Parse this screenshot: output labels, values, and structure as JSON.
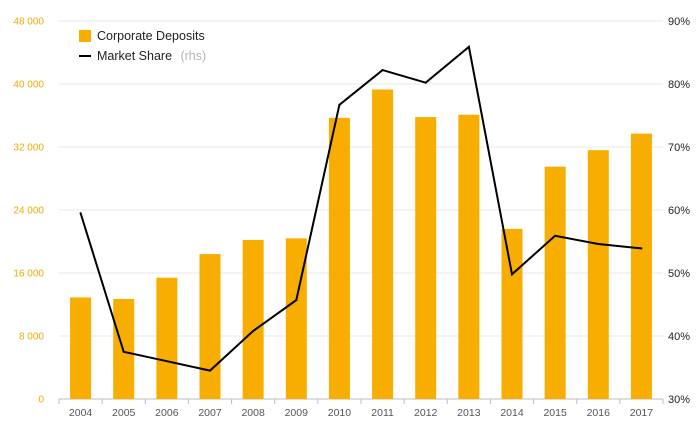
{
  "chart_data": {
    "type": "bar",
    "categories": [
      "2004",
      "2005",
      "2006",
      "2007",
      "2008",
      "2009",
      "2010",
      "2011",
      "2012",
      "2013",
      "2014",
      "2015",
      "2016",
      "2017"
    ],
    "series": [
      {
        "name": "Corporate Deposits",
        "type": "bar",
        "axis": "left",
        "color": "#f7ae00",
        "values": [
          12900,
          12700,
          15400,
          18400,
          20200,
          20400,
          35700,
          39300,
          35800,
          36100,
          21600,
          29500,
          31600,
          33700
        ]
      },
      {
        "name": "Market Share",
        "legend_suffix": "(rhs)",
        "type": "line",
        "axis": "right",
        "color": "#000000",
        "values": [
          59.5,
          37.5,
          36.0,
          34.5,
          40.8,
          45.7,
          76.7,
          82.2,
          80.2,
          85.9,
          49.8,
          55.9,
          54.6,
          53.9
        ]
      }
    ],
    "y_left": {
      "ylim": [
        0,
        48000
      ],
      "ticks": [
        0,
        8000,
        16000,
        24000,
        32000,
        40000,
        48000
      ],
      "tick_labels": [
        "0",
        "8 000",
        "16 000",
        "24 000",
        "32 000",
        "40 000",
        "48 000"
      ],
      "color": "#f2a900"
    },
    "y_right": {
      "ylim": [
        30,
        90
      ],
      "ticks": [
        30,
        40,
        50,
        60,
        70,
        80,
        90
      ],
      "tick_labels": [
        "30%",
        "40%",
        "50%",
        "60%",
        "70%",
        "80%",
        "90%"
      ]
    },
    "title": "",
    "xlabel": "",
    "ylabel": "",
    "grid": true,
    "legend_position": "top-left"
  }
}
